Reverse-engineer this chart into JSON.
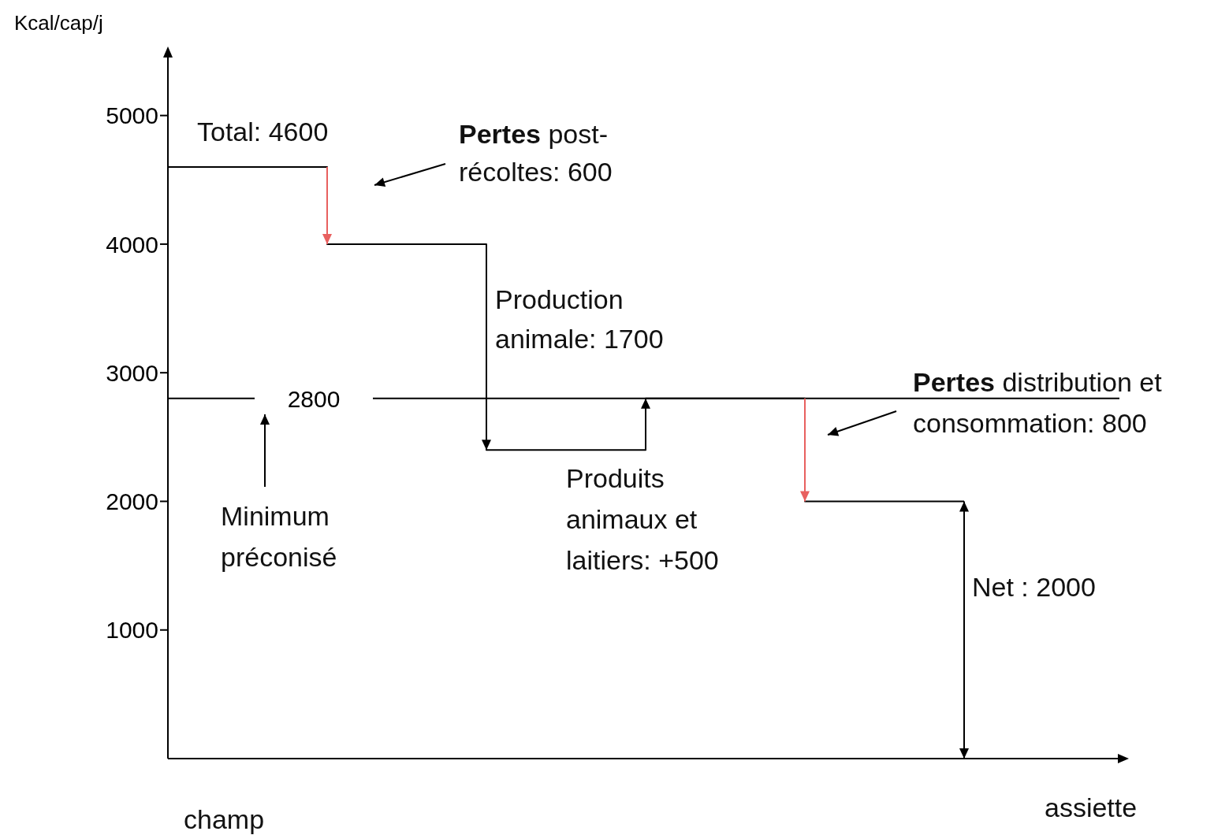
{
  "chart_data": {
    "type": "step",
    "ylabel": "Kcal/cap/j",
    "categories": [
      null,
      null,
      null,
      null,
      null,
      null
    ],
    "series": [
      {
        "color": "#000000",
        "colors": [
          "#e8605f",
          "#000000",
          "#000000",
          "#e8605f",
          "#000000",
          "#000000"
        ],
        "values": [
          4600,
          4000,
          2400,
          2800,
          2000,
          2000
        ]
      }
    ],
    "ylim": [
      0,
      5500
    ],
    "yticks": [
      1000,
      2000,
      3000,
      4000,
      5000
    ],
    "tick_labels": "y",
    "grid": false,
    "legend": false,
    "ref_lines": [
      {
        "axis": "y",
        "value": 2800,
        "label": "2800",
        "color": "#000000"
      }
    ],
    "annotations": [
      "Total: 4600",
      "Pertes post-\nrécoltes: 600",
      "Production\nanimale: 1700",
      "Produits\nanimaux et\nlaitiers: +500",
      "Pertes distribution et\nconsommation: 800",
      "Minimum\npréconisé",
      "Net : 2000",
      "champ",
      "assiette"
    ]
  }
}
